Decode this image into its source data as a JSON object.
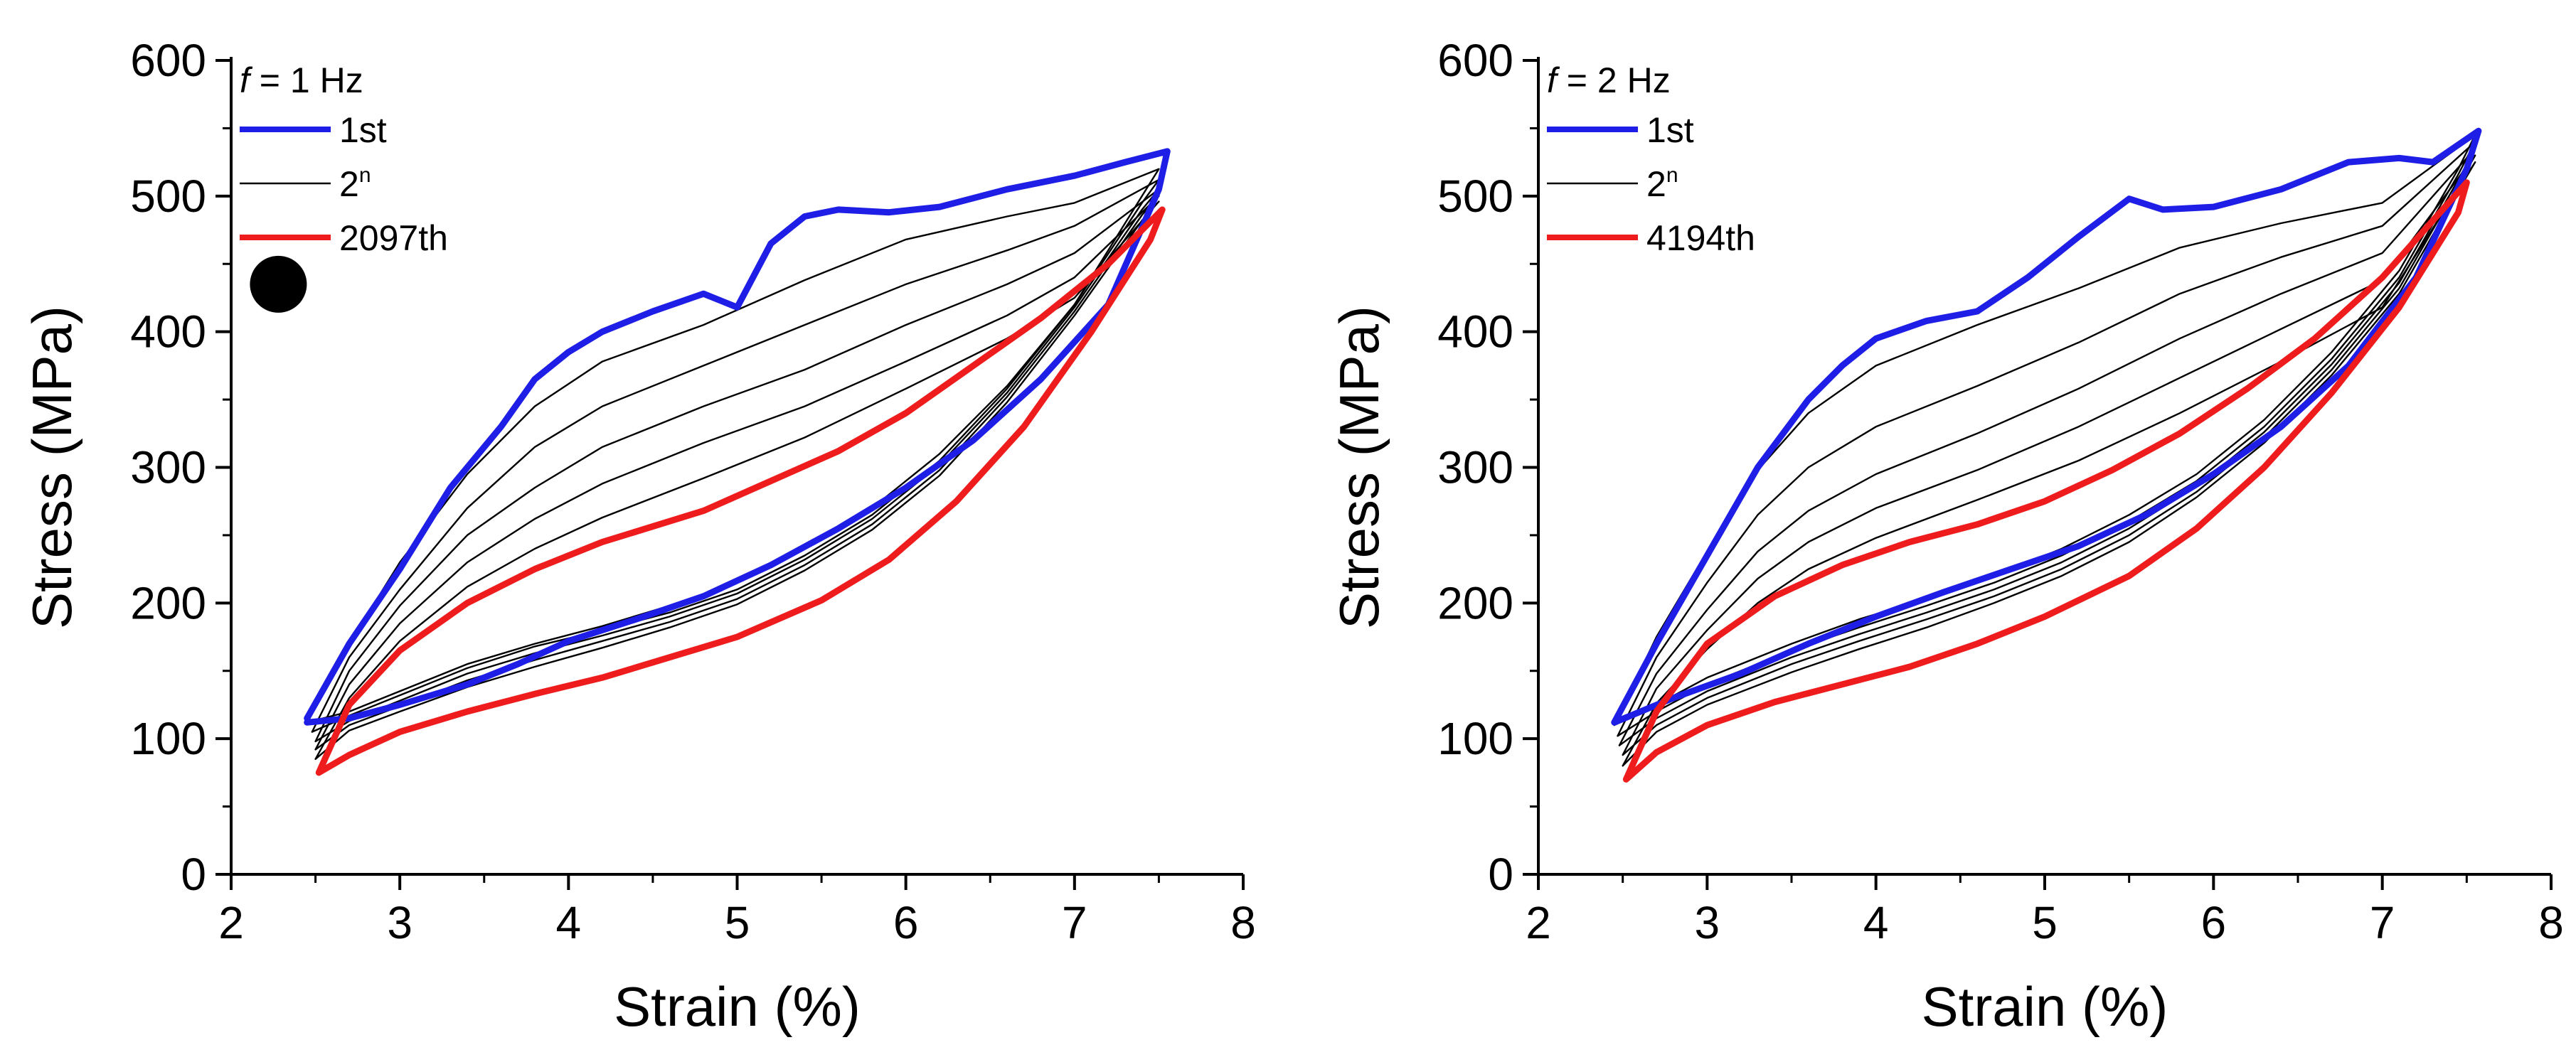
{
  "chart_data": [
    {
      "type": "line",
      "title": "",
      "xlabel": "Strain (%)",
      "ylabel": "Stress (MPa)",
      "xlim": [
        2,
        8
      ],
      "ylim": [
        0,
        600
      ],
      "xticks": [
        2,
        3,
        4,
        5,
        6,
        7,
        8
      ],
      "yticks": [
        0,
        100,
        200,
        300,
        400,
        500,
        600
      ],
      "grid": false,
      "legend_position": "top-left",
      "legend_title": {
        "italic": "f",
        "rest": " = 1 Hz"
      },
      "legend": [
        {
          "label": "1st",
          "superscript": "",
          "color": "#1e1ee6",
          "weight": "thick"
        },
        {
          "label": "2",
          "superscript": "n",
          "color": "#000000",
          "weight": "thin"
        },
        {
          "label": "2097th",
          "superscript": "",
          "color": "#ee1c1c",
          "weight": "thick"
        }
      ],
      "marker": {
        "shape": "filled-circle",
        "color": "#000000",
        "x": 2.28,
        "y": 435
      },
      "series": [
        {
          "name": "1st",
          "color": "#1e1ee6",
          "weight": "thick",
          "x": [
            2.45,
            2.7,
            3.0,
            3.3,
            3.6,
            3.8,
            4.0,
            4.2,
            4.5,
            4.8,
            5.0,
            5.2,
            5.4,
            5.6,
            5.9,
            6.2,
            6.6,
            7.0,
            7.3,
            7.55,
            7.5,
            7.2,
            6.8,
            6.4,
            6.0,
            5.6,
            5.2,
            4.8,
            4.4,
            4.0,
            3.7,
            3.4,
            3.0,
            2.7,
            2.45
          ],
          "y": [
            115,
            170,
            225,
            285,
            330,
            365,
            385,
            400,
            415,
            428,
            418,
            465,
            485,
            490,
            488,
            492,
            505,
            515,
            525,
            533,
            505,
            420,
            365,
            320,
            285,
            255,
            228,
            205,
            188,
            172,
            155,
            140,
            125,
            115,
            112
          ]
        },
        {
          "name": "2nd",
          "color": "#000000",
          "weight": "thin",
          "x": [
            2.45,
            2.7,
            3.0,
            3.4,
            3.8,
            4.2,
            4.8,
            5.4,
            6.0,
            6.6,
            7.0,
            7.5,
            7.4,
            7.0,
            6.6,
            6.2,
            5.8,
            5.4,
            5.0,
            4.6,
            4.2,
            3.8,
            3.4,
            3.0,
            2.7,
            2.45
          ],
          "y": [
            112,
            170,
            230,
            295,
            345,
            378,
            405,
            438,
            468,
            485,
            495,
            520,
            500,
            420,
            360,
            310,
            270,
            240,
            215,
            198,
            183,
            170,
            155,
            135,
            120,
            112
          ]
        },
        {
          "name": "intermediate-a",
          "color": "#000000",
          "weight": "thin",
          "x": [
            2.48,
            2.7,
            3.0,
            3.4,
            3.8,
            4.2,
            4.8,
            5.4,
            6.0,
            6.6,
            7.0,
            7.5,
            7.4,
            7.0,
            6.6,
            6.2,
            5.8,
            5.4,
            5.0,
            4.6,
            4.2,
            3.8,
            3.4,
            3.0,
            2.7,
            2.48
          ],
          "y": [
            105,
            160,
            210,
            270,
            315,
            345,
            375,
            405,
            435,
            460,
            478,
            512,
            495,
            420,
            358,
            305,
            265,
            235,
            210,
            193,
            180,
            168,
            152,
            132,
            117,
            105
          ]
        },
        {
          "name": "intermediate-b",
          "color": "#000000",
          "weight": "thin",
          "x": [
            2.5,
            2.7,
            3.0,
            3.4,
            3.8,
            4.2,
            4.8,
            5.4,
            6.0,
            6.6,
            7.0,
            7.5,
            7.4,
            7.0,
            6.6,
            6.2,
            5.8,
            5.4,
            5.0,
            4.6,
            4.2,
            3.8,
            3.4,
            3.0,
            2.7,
            2.5
          ],
          "y": [
            98,
            150,
            198,
            250,
            285,
            315,
            345,
            372,
            405,
            435,
            458,
            505,
            490,
            418,
            355,
            302,
            262,
            232,
            207,
            190,
            176,
            163,
            148,
            128,
            113,
            98
          ]
        },
        {
          "name": "intermediate-c",
          "color": "#000000",
          "weight": "thin",
          "x": [
            2.5,
            2.7,
            3.0,
            3.4,
            3.8,
            4.2,
            4.8,
            5.4,
            6.0,
            6.6,
            7.0,
            7.5,
            7.4,
            7.0,
            6.6,
            6.2,
            5.8,
            5.4,
            5.0,
            4.6,
            4.2,
            3.8,
            3.4,
            3.0,
            2.7,
            2.5
          ],
          "y": [
            92,
            140,
            185,
            230,
            262,
            288,
            318,
            345,
            378,
            412,
            440,
            500,
            486,
            415,
            352,
            298,
            258,
            228,
            203,
            186,
            172,
            158,
            143,
            124,
            110,
            92
          ]
        },
        {
          "name": "intermediate-d",
          "color": "#000000",
          "weight": "thin",
          "x": [
            2.5,
            2.7,
            3.0,
            3.4,
            3.8,
            4.2,
            4.8,
            5.4,
            6.0,
            6.6,
            7.0,
            7.5,
            7.4,
            7.0,
            6.6,
            6.2,
            5.8,
            5.4,
            5.0,
            4.6,
            4.2,
            3.8,
            3.4,
            3.0,
            2.7,
            2.5
          ],
          "y": [
            85,
            130,
            172,
            212,
            240,
            263,
            292,
            322,
            358,
            395,
            425,
            496,
            482,
            412,
            348,
            294,
            254,
            224,
            199,
            182,
            167,
            153,
            138,
            120,
            106,
            85
          ]
        },
        {
          "name": "2097th",
          "color": "#ee1c1c",
          "weight": "thick",
          "x": [
            2.52,
            2.7,
            3.0,
            3.4,
            3.8,
            4.2,
            4.8,
            5.2,
            5.6,
            6.0,
            6.4,
            6.8,
            7.2,
            7.52,
            7.45,
            7.1,
            6.7,
            6.3,
            5.9,
            5.5,
            5.0,
            4.6,
            4.2,
            3.8,
            3.4,
            3.0,
            2.7,
            2.52
          ],
          "y": [
            75,
            125,
            165,
            200,
            225,
            245,
            268,
            290,
            312,
            340,
            375,
            410,
            450,
            490,
            468,
            400,
            330,
            275,
            232,
            202,
            175,
            160,
            145,
            133,
            120,
            105,
            88,
            75
          ]
        }
      ]
    },
    {
      "type": "line",
      "title": "",
      "xlabel": "Strain (%)",
      "ylabel": "Stress (MPa)",
      "xlim": [
        2,
        8
      ],
      "ylim": [
        0,
        600
      ],
      "xticks": [
        2,
        3,
        4,
        5,
        6,
        7,
        8
      ],
      "yticks": [
        0,
        100,
        200,
        300,
        400,
        500,
        600
      ],
      "grid": false,
      "legend_position": "top-left",
      "legend_title": {
        "italic": "f",
        "rest": " = 2 Hz"
      },
      "legend": [
        {
          "label": "1st",
          "superscript": "",
          "color": "#1e1ee6",
          "weight": "thick"
        },
        {
          "label": "2",
          "superscript": "n",
          "color": "#000000",
          "weight": "thin"
        },
        {
          "label": "4194th",
          "superscript": "",
          "color": "#ee1c1c",
          "weight": "thick"
        }
      ],
      "series": [
        {
          "name": "1st",
          "color": "#1e1ee6",
          "weight": "thick",
          "x": [
            2.45,
            2.7,
            3.0,
            3.3,
            3.6,
            3.8,
            4.0,
            4.3,
            4.6,
            4.9,
            5.2,
            5.5,
            5.7,
            6.0,
            6.4,
            6.8,
            7.1,
            7.3,
            7.57,
            7.5,
            7.2,
            6.8,
            6.4,
            6.0,
            5.6,
            5.2,
            4.8,
            4.4,
            4.0,
            3.6,
            3.2,
            2.8,
            2.45
          ],
          "y": [
            112,
            170,
            235,
            300,
            350,
            375,
            395,
            408,
            415,
            440,
            470,
            498,
            490,
            492,
            505,
            525,
            528,
            525,
            548,
            520,
            440,
            375,
            330,
            295,
            265,
            242,
            225,
            208,
            190,
            170,
            148,
            130,
            112
          ]
        },
        {
          "name": "2nd",
          "color": "#000000",
          "weight": "thin",
          "x": [
            2.45,
            2.7,
            3.0,
            3.3,
            3.6,
            4.0,
            4.6,
            5.2,
            5.8,
            6.4,
            7.0,
            7.55,
            7.45,
            7.1,
            6.7,
            6.3,
            5.9,
            5.5,
            5.1,
            4.7,
            4.3,
            3.9,
            3.5,
            3.0,
            2.7,
            2.45
          ],
          "y": [
            110,
            175,
            238,
            298,
            340,
            375,
            405,
            432,
            462,
            480,
            495,
            545,
            520,
            445,
            385,
            335,
            295,
            265,
            240,
            220,
            203,
            188,
            170,
            145,
            125,
            110
          ]
        },
        {
          "name": "intermediate-a",
          "color": "#000000",
          "weight": "thin",
          "x": [
            2.47,
            2.7,
            3.0,
            3.3,
            3.6,
            4.0,
            4.6,
            5.2,
            5.8,
            6.4,
            7.0,
            7.55,
            7.45,
            7.1,
            6.7,
            6.3,
            5.9,
            5.5,
            5.1,
            4.7,
            4.3,
            3.9,
            3.5,
            3.0,
            2.7,
            2.47
          ],
          "y": [
            102,
            160,
            215,
            265,
            300,
            330,
            360,
            392,
            428,
            455,
            478,
            540,
            516,
            440,
            380,
            330,
            290,
            260,
            235,
            215,
            198,
            182,
            165,
            140,
            120,
            102
          ]
        },
        {
          "name": "intermediate-b",
          "color": "#000000",
          "weight": "thin",
          "x": [
            2.48,
            2.7,
            3.0,
            3.3,
            3.6,
            4.0,
            4.6,
            5.2,
            5.8,
            6.4,
            7.0,
            7.55,
            7.45,
            7.1,
            6.7,
            6.3,
            5.9,
            5.5,
            5.1,
            4.7,
            4.3,
            3.9,
            3.5,
            3.0,
            2.7,
            2.48
          ],
          "y": [
            95,
            148,
            195,
            238,
            268,
            295,
            325,
            358,
            395,
            428,
            458,
            535,
            512,
            436,
            376,
            326,
            286,
            255,
            230,
            210,
            193,
            177,
            160,
            135,
            115,
            95
          ]
        },
        {
          "name": "intermediate-c",
          "color": "#000000",
          "weight": "thin",
          "x": [
            2.5,
            2.7,
            3.0,
            3.3,
            3.6,
            4.0,
            4.6,
            5.2,
            5.8,
            6.4,
            7.0,
            7.55,
            7.45,
            7.1,
            6.7,
            6.3,
            5.9,
            5.5,
            5.1,
            4.7,
            4.3,
            3.9,
            3.5,
            3.0,
            2.7,
            2.5
          ],
          "y": [
            88,
            137,
            180,
            218,
            245,
            270,
            298,
            330,
            366,
            402,
            438,
            530,
            508,
            432,
            372,
            322,
            282,
            250,
            225,
            205,
            188,
            172,
            155,
            130,
            110,
            88
          ]
        },
        {
          "name": "intermediate-d",
          "color": "#000000",
          "weight": "thin",
          "x": [
            2.5,
            2.7,
            3.0,
            3.3,
            3.6,
            4.0,
            4.6,
            5.2,
            5.8,
            6.4,
            7.0,
            7.55,
            7.45,
            7.1,
            6.7,
            6.3,
            5.9,
            5.5,
            5.1,
            4.7,
            4.3,
            3.9,
            3.5,
            3.0,
            2.7,
            2.5
          ],
          "y": [
            80,
            126,
            166,
            200,
            225,
            248,
            276,
            305,
            340,
            378,
            418,
            525,
            504,
            428,
            368,
            318,
            278,
            245,
            220,
            200,
            182,
            166,
            149,
            125,
            105,
            80
          ]
        },
        {
          "name": "4194th",
          "color": "#ee1c1c",
          "weight": "thick",
          "x": [
            2.52,
            2.7,
            3.0,
            3.4,
            3.8,
            4.2,
            4.6,
            5.0,
            5.4,
            5.8,
            6.2,
            6.6,
            7.0,
            7.5,
            7.45,
            7.1,
            6.7,
            6.3,
            5.9,
            5.5,
            5.0,
            4.6,
            4.2,
            3.8,
            3.4,
            3.0,
            2.7,
            2.52
          ],
          "y": [
            70,
            120,
            170,
            205,
            228,
            245,
            258,
            275,
            298,
            325,
            358,
            395,
            440,
            510,
            488,
            418,
            355,
            300,
            255,
            220,
            190,
            170,
            153,
            140,
            127,
            110,
            90,
            70
          ]
        }
      ]
    }
  ]
}
